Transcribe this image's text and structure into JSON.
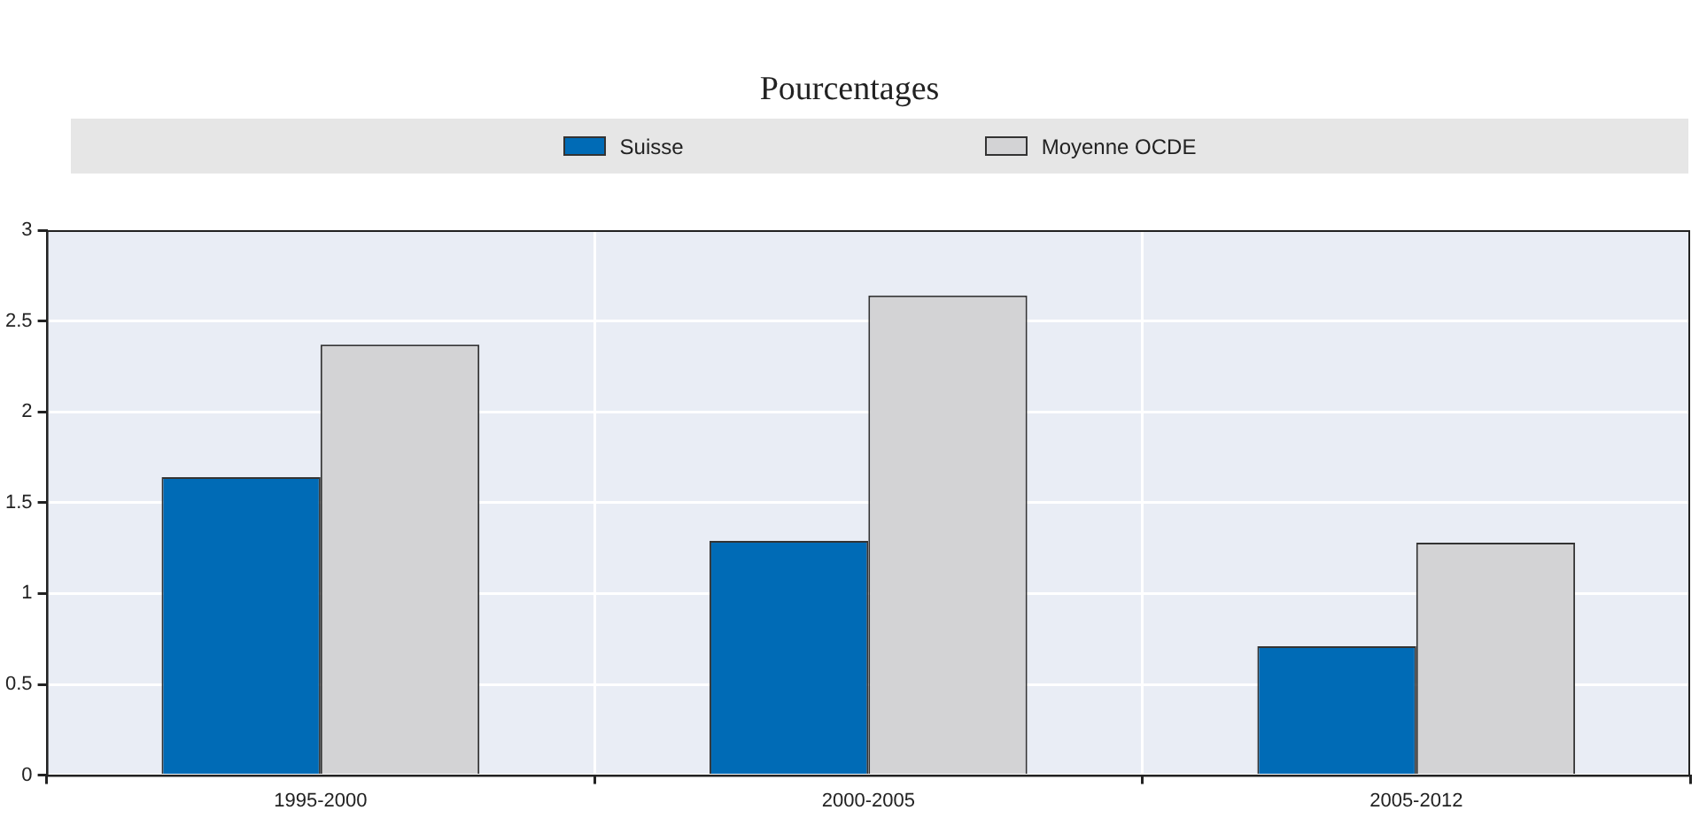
{
  "chart_data": {
    "type": "bar",
    "title": "Pourcentages",
    "categories": [
      "1995-2000",
      "2000-2005",
      "2005-2012"
    ],
    "series": [
      {
        "name": "Suisse",
        "color": "#006bb6",
        "values": [
          1.64,
          1.29,
          0.71
        ]
      },
      {
        "name": "Moyenne OCDE",
        "color": "#d3d3d5",
        "values": [
          2.37,
          2.64,
          1.28
        ]
      }
    ],
    "ylim": [
      0,
      3
    ],
    "yticks": [
      0,
      0.5,
      1,
      1.5,
      2,
      2.5,
      3
    ],
    "grid": true,
    "legend": "top"
  }
}
